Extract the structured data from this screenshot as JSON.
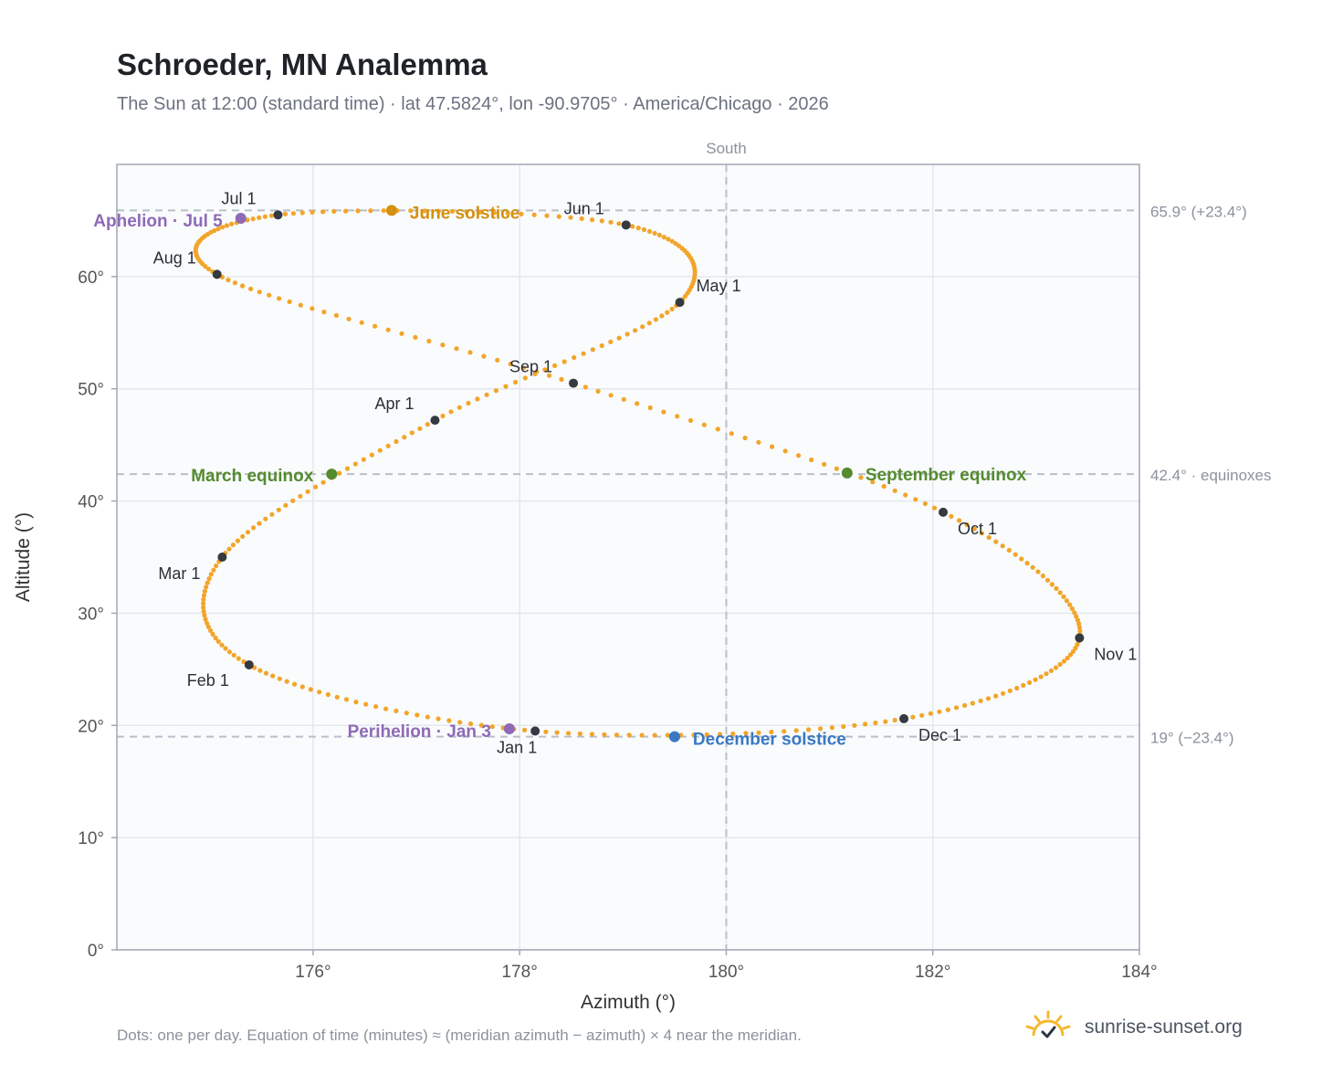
{
  "title": "Schroeder, MN Analemma",
  "subtitle": "The Sun at 12:00 (standard time) · lat 47.5824°, lon -90.9705° · America/Chicago · 2026",
  "footnote": "Dots: one per day. Equation of time (minutes) ≈ (meridian azimuth − azimuth) × 4 near the meridian.",
  "brand": {
    "name": "sunrise-sunset.org",
    "icon": "sun-check-logo-icon"
  },
  "colors": {
    "path": "#f2a52a",
    "month_marker": "#343a40",
    "solstice_june": "#d4900f",
    "solstice_december": "#3a78c2",
    "equinox": "#558b2f",
    "apsis": "#8e6ab7",
    "plot_bg": "#f9fbfd",
    "grid": "#e4e8ee",
    "reference_line": "#b8c0c8"
  },
  "chart_data": {
    "type": "scatter",
    "xlabel": "Azimuth (°)",
    "ylabel": "Altitude (°)",
    "xlim": [
      174.1,
      184.0
    ],
    "ylim": [
      0,
      70
    ],
    "x_ticks": [
      176,
      178,
      180,
      182,
      184
    ],
    "y_ticks": [
      0,
      10,
      20,
      30,
      40,
      50,
      60
    ],
    "x_tick_labels": [
      "176°",
      "178°",
      "180°",
      "182°",
      "184°"
    ],
    "y_tick_labels": [
      "0°",
      "10°",
      "20°",
      "30°",
      "40°",
      "50°",
      "60°"
    ],
    "grid": true,
    "meridian": {
      "x": 180,
      "label": "South"
    },
    "reference_lines": [
      {
        "y": 65.9,
        "label": "65.9° (+23.4°)"
      },
      {
        "y": 42.4,
        "label": "42.4° · equinoxes"
      },
      {
        "y": 19.0,
        "label": "19° (−23.4°)"
      }
    ],
    "month_markers": [
      {
        "label": "Jan 1",
        "az": 178.15,
        "alt": 19.5
      },
      {
        "label": "Feb 1",
        "az": 175.38,
        "alt": 25.4
      },
      {
        "label": "Mar 1",
        "az": 175.12,
        "alt": 35.0
      },
      {
        "label": "Apr 1",
        "az": 177.18,
        "alt": 47.2
      },
      {
        "label": "May 1",
        "az": 179.55,
        "alt": 57.7
      },
      {
        "label": "Jun 1",
        "az": 179.03,
        "alt": 64.6
      },
      {
        "label": "Jul 1",
        "az": 175.66,
        "alt": 65.5
      },
      {
        "label": "Aug 1",
        "az": 175.07,
        "alt": 60.2
      },
      {
        "label": "Sep 1",
        "az": 178.52,
        "alt": 50.5
      },
      {
        "label": "Oct 1",
        "az": 182.1,
        "alt": 39.0
      },
      {
        "label": "Nov 1",
        "az": 183.42,
        "alt": 27.8
      },
      {
        "label": "Dec 1",
        "az": 181.72,
        "alt": 20.6
      }
    ],
    "events": [
      {
        "label": "June solstice",
        "az": 176.76,
        "alt": 65.9,
        "kind": "solstice_june"
      },
      {
        "label": "December solstice",
        "az": 179.5,
        "alt": 19.0,
        "kind": "solstice_december"
      },
      {
        "label": "March equinox",
        "az": 176.18,
        "alt": 42.4,
        "kind": "equinox"
      },
      {
        "label": "September equinox",
        "az": 181.17,
        "alt": 42.5,
        "kind": "equinox"
      },
      {
        "label": "Aphelion · Jul 5",
        "az": 175.3,
        "alt": 65.2,
        "kind": "apsis"
      },
      {
        "label": "Perihelion · Jan 3",
        "az": 177.9,
        "alt": 19.7,
        "kind": "apsis"
      }
    ]
  }
}
